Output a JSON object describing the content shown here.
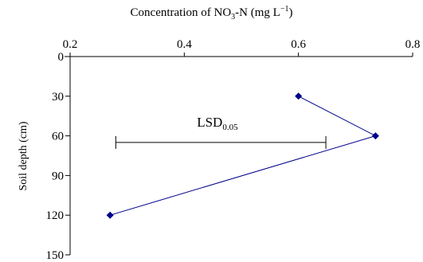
{
  "chart_data": {
    "type": "line",
    "title": "Concentration of NO₃-N (mg L⁻¹)",
    "xlabel": "Concentration of NO₃-N (mg L⁻¹)",
    "ylabel": "Soil depth (cm)",
    "x_axis_position": "top",
    "y_inverted": true,
    "xlim": [
      0.2,
      0.8
    ],
    "ylim": [
      0,
      150
    ],
    "x_ticks": [
      "0.2",
      "0.4",
      "0.6",
      "0.8"
    ],
    "y_ticks": [
      "0",
      "30",
      "60",
      "90",
      "120",
      "150"
    ],
    "grid": false,
    "series": [
      {
        "color": "#00008B",
        "marker": "diamond",
        "points": [
          {
            "x": 0.6,
            "y": 30
          },
          {
            "x": 0.735,
            "y": 60
          },
          {
            "x": 0.27,
            "y": 120
          }
        ]
      }
    ],
    "annotation": {
      "label_main": "LSD",
      "label_sub": "0.05",
      "x_start": 0.28,
      "x_end": 0.648,
      "y": 65
    }
  }
}
